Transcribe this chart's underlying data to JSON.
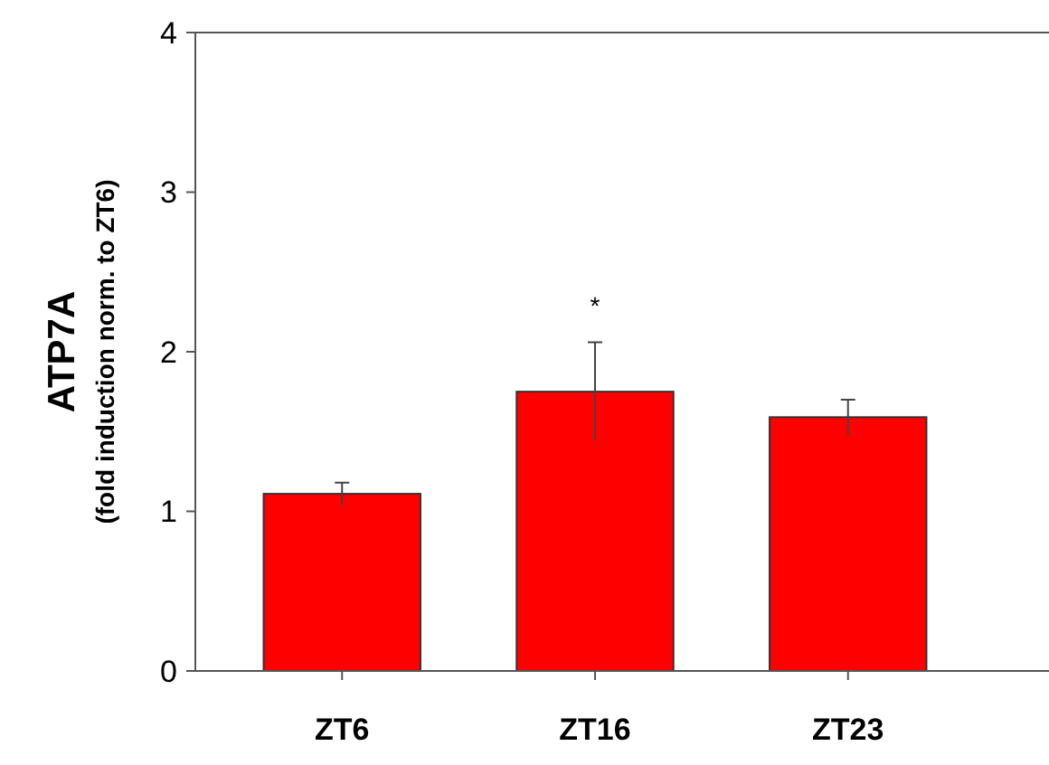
{
  "chart_data": {
    "type": "bar",
    "ylabel": "ATP7A",
    "subtitle": "(fold induction norm. to ZT6)",
    "categories": [
      "ZT6",
      "ZT16",
      "ZT23"
    ],
    "values": [
      1.11,
      1.75,
      1.59
    ],
    "errors": [
      0.07,
      0.31,
      0.11
    ],
    "color": "#ff0000",
    "ylim": [
      0,
      4
    ],
    "yticks": [
      0,
      1,
      2,
      3,
      4
    ],
    "annotations": [
      "*"
    ]
  }
}
